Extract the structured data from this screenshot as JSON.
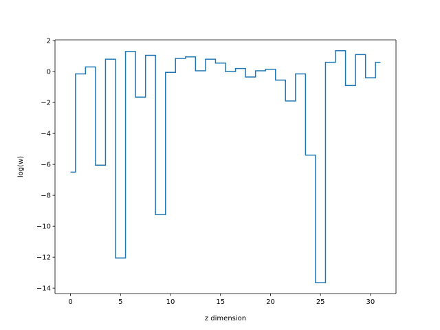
{
  "chart_data": {
    "type": "line",
    "drawstyle": "steps-mid",
    "title": "",
    "xlabel": "z dimension",
    "ylabel": "log(w)",
    "xlim": [
      -1.55,
      32.55
    ],
    "ylim": [
      -14.35,
      2.05
    ],
    "xticks": [
      0,
      5,
      10,
      15,
      20,
      25,
      30
    ],
    "yticks": [
      2,
      0,
      -2,
      -4,
      -6,
      -8,
      -10,
      -12,
      -14
    ],
    "grid": false,
    "legend": false,
    "series": [
      {
        "color": "#1f77b4",
        "x": [
          0,
          1,
          2,
          3,
          4,
          5,
          6,
          7,
          8,
          9,
          10,
          11,
          12,
          13,
          14,
          15,
          16,
          17,
          18,
          19,
          20,
          21,
          22,
          23,
          24,
          25,
          26,
          27,
          28,
          29,
          30,
          31
        ],
        "values": [
          -6.5,
          -0.15,
          0.3,
          -6.05,
          0.8,
          -12.05,
          1.3,
          -1.65,
          1.05,
          -9.25,
          -0.05,
          0.85,
          0.95,
          0.05,
          0.8,
          0.55,
          0.0,
          0.2,
          -0.35,
          0.05,
          0.15,
          -0.55,
          -1.9,
          -0.15,
          -5.4,
          -13.65,
          0.6,
          1.35,
          -0.9,
          1.1,
          -0.4,
          0.6
        ]
      }
    ]
  }
}
